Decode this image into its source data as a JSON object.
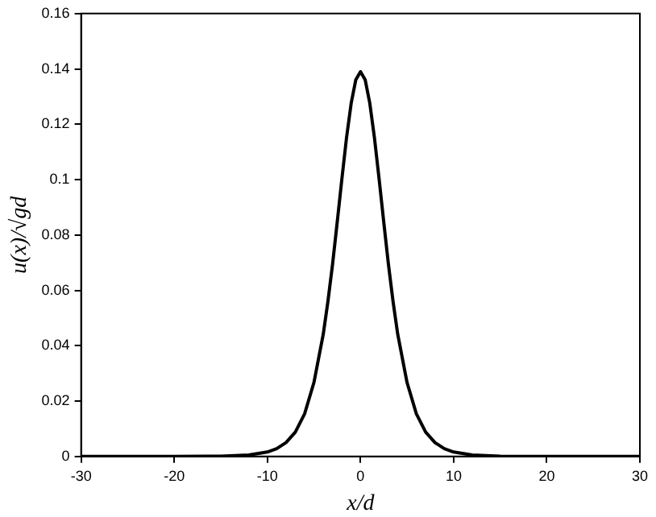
{
  "chart_data": {
    "type": "line",
    "xlabel": "x/d",
    "ylabel": "u(x)/√gd",
    "x": [
      -30,
      -20,
      -15,
      -12,
      -10,
      -9,
      -8,
      -7,
      -6,
      -5,
      -4,
      -3.5,
      -3,
      -2.5,
      -2,
      -1.5,
      -1,
      -0.5,
      0,
      0.5,
      1,
      1.5,
      2,
      2.5,
      3,
      3.5,
      4,
      5,
      6,
      7,
      8,
      9,
      10,
      12,
      15,
      20,
      30
    ],
    "series": [
      {
        "color": "#000000",
        "values": [
          0,
          0,
          0.0001,
          0.0005,
          0.0016,
          0.0028,
          0.005,
          0.0088,
          0.0154,
          0.0267,
          0.0441,
          0.0559,
          0.0694,
          0.0846,
          0.1002,
          0.1151,
          0.1276,
          0.1361,
          0.139,
          0.1361,
          0.1276,
          0.1151,
          0.1002,
          0.0846,
          0.0694,
          0.0559,
          0.0441,
          0.0267,
          0.0154,
          0.0088,
          0.005,
          0.0028,
          0.0016,
          0.0005,
          0.0001,
          0,
          0
        ]
      }
    ],
    "xlim": [
      -30,
      30
    ],
    "xticks": [
      -30,
      -20,
      -10,
      0,
      10,
      20,
      30
    ],
    "ylim": [
      0,
      0.16
    ],
    "yticks": [
      0,
      0.02,
      0.04,
      0.06,
      0.08,
      0.1,
      0.12,
      0.14,
      0.16
    ],
    "grid": false,
    "legend": false,
    "marker": "none",
    "line_style": "solid"
  }
}
